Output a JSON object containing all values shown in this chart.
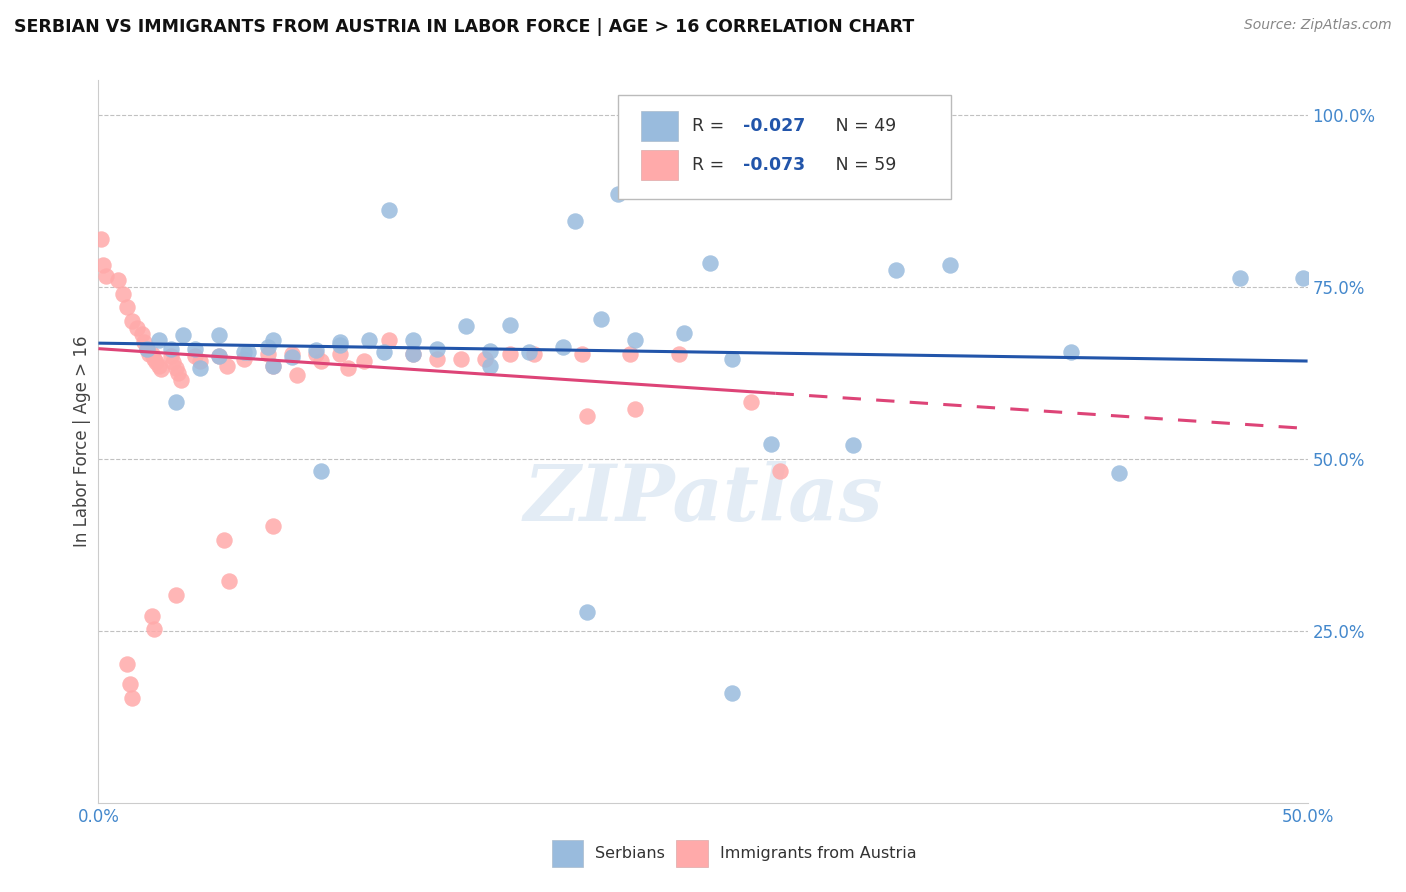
{
  "title": "SERBIAN VS IMMIGRANTS FROM AUSTRIA IN LABOR FORCE | AGE > 16 CORRELATION CHART",
  "source": "Source: ZipAtlas.com",
  "ylabel": "In Labor Force | Age > 16",
  "xlim": [
    0.0,
    0.5
  ],
  "ylim": [
    0.0,
    1.05
  ],
  "yticks": [
    0.25,
    0.5,
    0.75,
    1.0
  ],
  "ytick_labels": [
    "25.0%",
    "50.0%",
    "75.0%",
    "100.0%"
  ],
  "xticks": [
    0.0,
    0.1,
    0.2,
    0.3,
    0.4,
    0.5
  ],
  "xtick_labels": [
    "0.0%",
    "",
    "",
    "",
    "",
    "50.0%"
  ],
  "legend_r_blue": "-0.027",
  "legend_n_blue": "49",
  "legend_r_pink": "-0.073",
  "legend_n_pink": "59",
  "blue_color": "#99BBDD",
  "pink_color": "#FFAAAA",
  "trend_blue_color": "#2255AA",
  "trend_pink_color": "#DD4477",
  "watermark": "ZIPatlas",
  "blue_scatter_x": [
    0.295,
    0.215,
    0.197,
    0.253,
    0.12,
    0.17,
    0.33,
    0.02,
    0.025,
    0.03,
    0.035,
    0.04,
    0.05,
    0.06,
    0.07,
    0.08,
    0.09,
    0.05,
    0.062,
    0.072,
    0.1,
    0.118,
    0.13,
    0.14,
    0.152,
    0.162,
    0.178,
    0.192,
    0.208,
    0.072,
    0.1,
    0.112,
    0.13,
    0.222,
    0.242,
    0.262,
    0.278,
    0.312,
    0.352,
    0.402,
    0.422,
    0.472,
    0.498,
    0.262,
    0.162,
    0.092,
    0.042,
    0.032,
    0.202
  ],
  "blue_scatter_y": [
    1.0,
    0.885,
    0.845,
    0.785,
    0.862,
    0.695,
    0.775,
    0.66,
    0.672,
    0.66,
    0.68,
    0.66,
    0.65,
    0.655,
    0.663,
    0.648,
    0.658,
    0.68,
    0.655,
    0.672,
    0.67,
    0.655,
    0.672,
    0.66,
    0.693,
    0.656,
    0.655,
    0.662,
    0.703,
    0.635,
    0.665,
    0.672,
    0.652,
    0.672,
    0.683,
    0.645,
    0.522,
    0.52,
    0.782,
    0.655,
    0.48,
    0.762,
    0.762,
    0.16,
    0.635,
    0.482,
    0.632,
    0.582,
    0.278
  ],
  "pink_scatter_x": [
    0.001,
    0.002,
    0.003,
    0.008,
    0.01,
    0.012,
    0.014,
    0.016,
    0.018,
    0.019,
    0.02,
    0.021,
    0.022,
    0.023,
    0.024,
    0.025,
    0.026,
    0.03,
    0.031,
    0.032,
    0.033,
    0.034,
    0.04,
    0.042,
    0.05,
    0.053,
    0.06,
    0.07,
    0.072,
    0.08,
    0.082,
    0.09,
    0.092,
    0.1,
    0.103,
    0.11,
    0.12,
    0.13,
    0.14,
    0.15,
    0.16,
    0.17,
    0.18,
    0.2,
    0.202,
    0.22,
    0.222,
    0.24,
    0.27,
    0.282,
    0.072,
    0.052,
    0.054,
    0.032,
    0.022,
    0.023,
    0.012,
    0.013,
    0.014
  ],
  "pink_scatter_y": [
    0.82,
    0.782,
    0.765,
    0.76,
    0.74,
    0.72,
    0.7,
    0.69,
    0.682,
    0.67,
    0.66,
    0.652,
    0.652,
    0.645,
    0.64,
    0.635,
    0.63,
    0.65,
    0.64,
    0.632,
    0.625,
    0.615,
    0.65,
    0.642,
    0.65,
    0.635,
    0.645,
    0.652,
    0.635,
    0.652,
    0.622,
    0.652,
    0.642,
    0.652,
    0.632,
    0.642,
    0.672,
    0.652,
    0.645,
    0.645,
    0.645,
    0.652,
    0.652,
    0.652,
    0.562,
    0.652,
    0.572,
    0.652,
    0.582,
    0.482,
    0.402,
    0.382,
    0.322,
    0.302,
    0.272,
    0.252,
    0.202,
    0.172,
    0.152
  ]
}
